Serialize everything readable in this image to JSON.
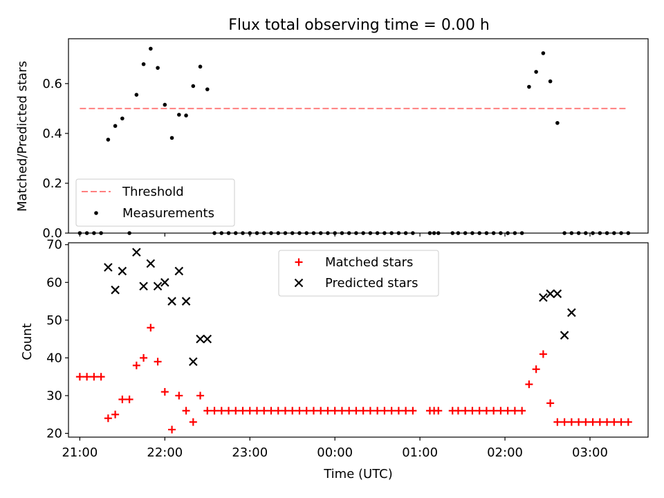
{
  "figure": {
    "title": "Flux total observing time = 0.00 h",
    "x_axis_label": "Time (UTC)",
    "x_tick_labels": [
      "21:00",
      "22:00",
      "23:00",
      "00:00",
      "01:00",
      "02:00",
      "03:00"
    ]
  },
  "colors": {
    "threshold": "#ff7f7f",
    "measurements": "#000000",
    "matched": "#ff0000",
    "predicted": "#000000"
  },
  "chart_data": [
    {
      "type": "scatter",
      "panel": "top",
      "ylabel": "Matched/Predicted stars",
      "xlim": [
        "20:52",
        "03:41"
      ],
      "ylim": [
        0.0,
        0.78
      ],
      "y_ticks": [
        0.0,
        0.2,
        0.4,
        0.6
      ],
      "y_tick_labels": [
        "0.0",
        "0.2",
        "0.4",
        "0.6"
      ],
      "legend_position": "lower-left",
      "threshold": {
        "name": "Threshold",
        "value": 0.5,
        "x_range": [
          "21:00",
          "03:27"
        ],
        "style": "dashed"
      },
      "series": [
        {
          "name": "Measurements",
          "x": [
            "21:00",
            "21:05",
            "21:10",
            "21:15",
            "21:20",
            "21:25",
            "21:30",
            "21:35",
            "21:40",
            "21:45",
            "21:50",
            "21:55",
            "22:00",
            "22:05",
            "22:10",
            "22:15",
            "22:20",
            "22:25",
            "22:30",
            "22:35",
            "22:40",
            "22:45",
            "22:50",
            "22:55",
            "23:00",
            "23:05",
            "23:10",
            "23:15",
            "23:20",
            "23:25",
            "23:30",
            "23:35",
            "23:40",
            "23:45",
            "23:50",
            "23:55",
            "00:00",
            "00:05",
            "00:10",
            "00:15",
            "00:20",
            "00:25",
            "00:30",
            "00:35",
            "00:40",
            "00:45",
            "00:50",
            "00:55",
            "01:07",
            "01:10",
            "01:13",
            "01:23",
            "01:27",
            "01:32",
            "01:37",
            "01:42",
            "01:47",
            "01:52",
            "01:57",
            "02:02",
            "02:07",
            "02:12",
            "02:17",
            "02:22",
            "02:27",
            "02:32",
            "02:37",
            "02:42",
            "02:47",
            "02:52",
            "02:57",
            "03:02",
            "03:07",
            "03:12",
            "03:17",
            "03:22",
            "03:27"
          ],
          "values": [
            0.0,
            0.0,
            0.0,
            0.0,
            0.375,
            0.43,
            0.46,
            0.0,
            0.555,
            0.678,
            0.74,
            0.663,
            0.515,
            0.382,
            0.475,
            0.472,
            0.59,
            0.668,
            0.577,
            0.0,
            0.0,
            0.0,
            0.0,
            0.0,
            0.0,
            0.0,
            0.0,
            0.0,
            0.0,
            0.0,
            0.0,
            0.0,
            0.0,
            0.0,
            0.0,
            0.0,
            0.0,
            0.0,
            0.0,
            0.0,
            0.0,
            0.0,
            0.0,
            0.0,
            0.0,
            0.0,
            0.0,
            0.0,
            0.0,
            0.0,
            0.0,
            0.0,
            0.0,
            0.0,
            0.0,
            0.0,
            0.0,
            0.0,
            0.0,
            0.0,
            0.0,
            0.0,
            0.587,
            0.647,
            0.722,
            0.609,
            0.442,
            0.0,
            0.0,
            0.0,
            0.0,
            0.0,
            0.0,
            0.0,
            0.0,
            0.0,
            0.0
          ]
        }
      ]
    },
    {
      "type": "scatter",
      "panel": "bottom",
      "ylabel": "Count",
      "xlabel": "Time (UTC)",
      "xlim": [
        "20:52",
        "03:41"
      ],
      "ylim": [
        19,
        70.5
      ],
      "y_ticks": [
        20,
        30,
        40,
        50,
        60,
        70
      ],
      "y_tick_labels": [
        "20",
        "30",
        "40",
        "50",
        "60",
        "70"
      ],
      "legend_position": "top-center",
      "series": [
        {
          "name": "Matched stars",
          "marker": "plus",
          "x": [
            "21:00",
            "21:05",
            "21:10",
            "21:15",
            "21:20",
            "21:25",
            "21:30",
            "21:35",
            "21:40",
            "21:45",
            "21:50",
            "21:55",
            "22:00",
            "22:05",
            "22:10",
            "22:15",
            "22:20",
            "22:25",
            "22:30",
            "22:35",
            "22:40",
            "22:45",
            "22:50",
            "22:55",
            "23:00",
            "23:05",
            "23:10",
            "23:15",
            "23:20",
            "23:25",
            "23:30",
            "23:35",
            "23:40",
            "23:45",
            "23:50",
            "23:55",
            "00:00",
            "00:05",
            "00:10",
            "00:15",
            "00:20",
            "00:25",
            "00:30",
            "00:35",
            "00:40",
            "00:45",
            "00:50",
            "00:55",
            "01:07",
            "01:10",
            "01:13",
            "01:23",
            "01:27",
            "01:32",
            "01:37",
            "01:42",
            "01:47",
            "01:52",
            "01:57",
            "02:02",
            "02:07",
            "02:12",
            "02:17",
            "02:22",
            "02:27",
            "02:32",
            "02:37",
            "02:42",
            "02:47",
            "02:52",
            "02:57",
            "03:02",
            "03:07",
            "03:12",
            "03:17",
            "03:22",
            "03:27"
          ],
          "values": [
            35,
            35,
            35,
            35,
            24,
            25,
            29,
            29,
            38,
            40,
            48,
            39,
            31,
            21,
            30,
            26,
            23,
            30,
            26,
            26,
            26,
            26,
            26,
            26,
            26,
            26,
            26,
            26,
            26,
            26,
            26,
            26,
            26,
            26,
            26,
            26,
            26,
            26,
            26,
            26,
            26,
            26,
            26,
            26,
            26,
            26,
            26,
            26,
            26,
            26,
            26,
            26,
            26,
            26,
            26,
            26,
            26,
            26,
            26,
            26,
            26,
            26,
            33,
            37,
            41,
            28,
            23,
            23,
            23,
            23,
            23,
            23,
            23,
            23,
            23,
            23,
            23
          ]
        },
        {
          "name": "Predicted stars",
          "marker": "x",
          "x": [
            "21:20",
            "21:25",
            "21:30",
            "21:40",
            "21:45",
            "21:50",
            "21:55",
            "22:00",
            "22:05",
            "22:10",
            "22:15",
            "22:20",
            "22:25",
            "22:30",
            "02:27",
            "02:32",
            "02:37",
            "02:42",
            "02:47"
          ],
          "values": [
            64,
            58,
            63,
            68,
            59,
            65,
            59,
            60,
            55,
            63,
            55,
            39,
            45,
            45,
            56,
            57,
            57,
            46,
            52
          ]
        }
      ]
    }
  ]
}
